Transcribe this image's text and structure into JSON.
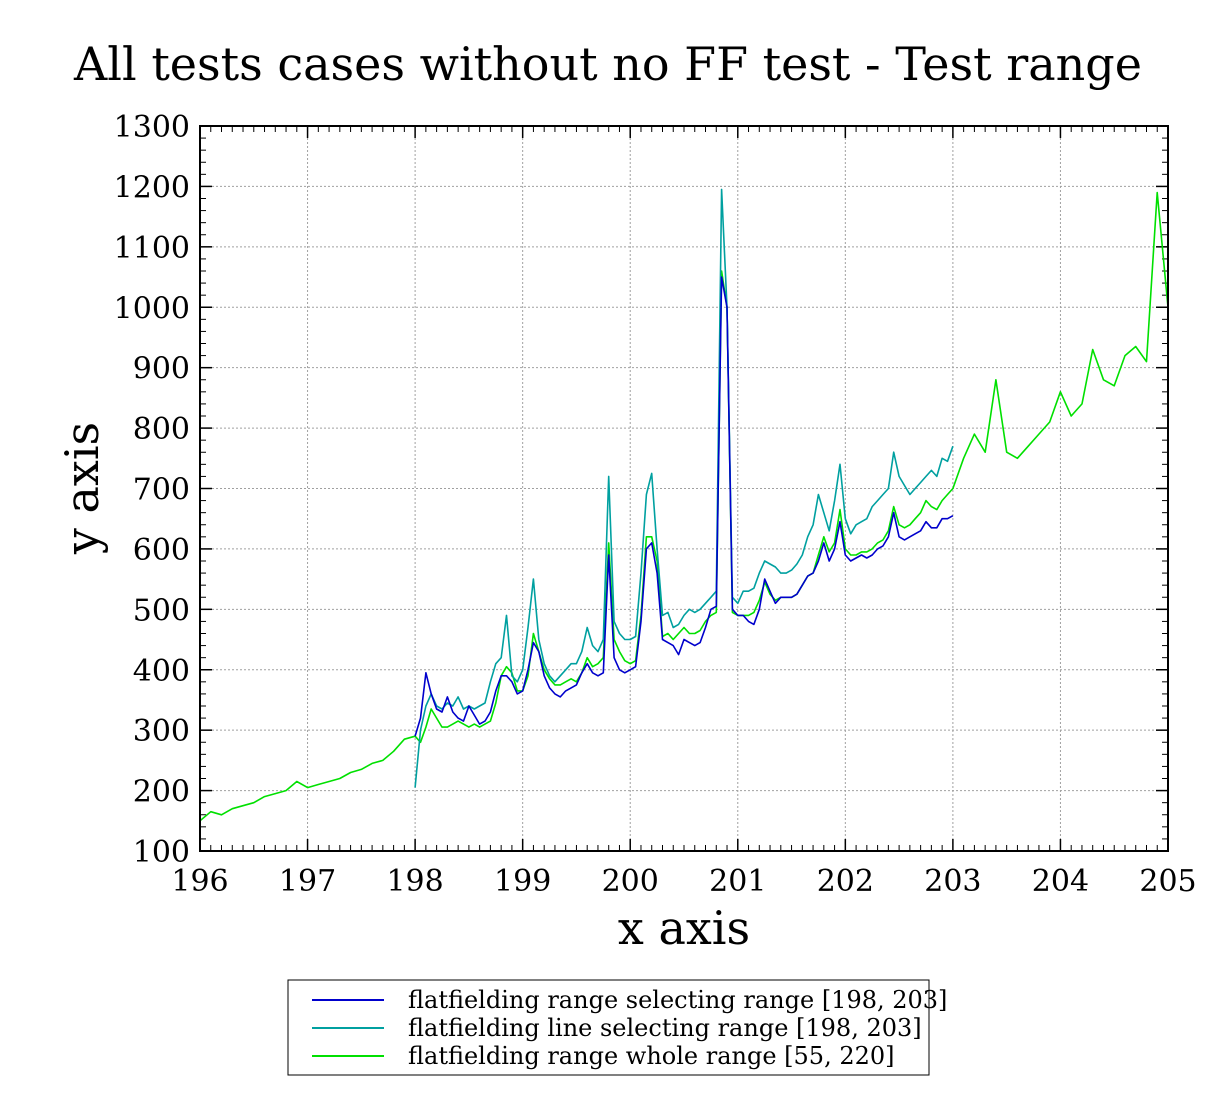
{
  "chart_data": {
    "type": "line",
    "title": "All tests cases without no FF test - Test range",
    "xlabel": "x axis",
    "ylabel": "y axis",
    "xlim": [
      196,
      205
    ],
    "ylim": [
      100,
      1300
    ],
    "xticks": [
      "196",
      "197",
      "198",
      "199",
      "200",
      "201",
      "202",
      "203",
      "204",
      "205"
    ],
    "yticks": [
      "100",
      "200",
      "300",
      "400",
      "500",
      "600",
      "700",
      "800",
      "900",
      "1000",
      "1100",
      "1200",
      "1300"
    ],
    "grid": true,
    "legend_position": "bottom-center",
    "series": [
      {
        "name": "flatfielding range selecting range [198, 203]",
        "color": "#0000cc",
        "x": [
          198.0,
          198.05,
          198.1,
          198.15,
          198.2,
          198.25,
          198.3,
          198.35,
          198.4,
          198.45,
          198.5,
          198.55,
          198.6,
          198.65,
          198.7,
          198.75,
          198.8,
          198.85,
          198.9,
          198.95,
          199.0,
          199.05,
          199.1,
          199.15,
          199.2,
          199.25,
          199.3,
          199.35,
          199.4,
          199.45,
          199.5,
          199.55,
          199.6,
          199.65,
          199.7,
          199.75,
          199.8,
          199.85,
          199.9,
          199.95,
          200.0,
          200.05,
          200.1,
          200.15,
          200.2,
          200.25,
          200.3,
          200.35,
          200.4,
          200.45,
          200.5,
          200.55,
          200.6,
          200.65,
          200.7,
          200.75,
          200.8,
          200.85,
          200.9,
          200.95,
          201.0,
          201.05,
          201.1,
          201.15,
          201.2,
          201.25,
          201.3,
          201.35,
          201.4,
          201.45,
          201.5,
          201.55,
          201.6,
          201.65,
          201.7,
          201.75,
          201.8,
          201.85,
          201.9,
          201.95,
          202.0,
          202.05,
          202.1,
          202.15,
          202.2,
          202.25,
          202.3,
          202.35,
          202.4,
          202.45,
          202.5,
          202.55,
          202.6,
          202.65,
          202.7,
          202.75,
          202.8,
          202.85,
          202.9,
          202.95,
          203.0
        ],
        "y": [
          290,
          320,
          395,
          360,
          335,
          330,
          355,
          330,
          320,
          315,
          340,
          325,
          310,
          315,
          330,
          365,
          390,
          390,
          380,
          360,
          365,
          400,
          445,
          430,
          390,
          370,
          360,
          355,
          365,
          370,
          375,
          395,
          410,
          395,
          390,
          395,
          590,
          420,
          400,
          395,
          400,
          405,
          480,
          600,
          610,
          560,
          450,
          445,
          440,
          425,
          450,
          445,
          440,
          445,
          470,
          500,
          505,
          1050,
          1000,
          500,
          490,
          490,
          480,
          475,
          500,
          550,
          530,
          510,
          520,
          520,
          520,
          525,
          540,
          555,
          560,
          580,
          610,
          580,
          600,
          645,
          590,
          580,
          585,
          590,
          585,
          590,
          600,
          605,
          620,
          660,
          620,
          615,
          620,
          625,
          630,
          645,
          635,
          635,
          650,
          650,
          655
        ]
      },
      {
        "name": "flatfielding line selecting range [198, 203]",
        "color": "#00a0a0",
        "x": [
          198.0,
          198.05,
          198.1,
          198.15,
          198.2,
          198.25,
          198.3,
          198.35,
          198.4,
          198.45,
          198.5,
          198.55,
          198.6,
          198.65,
          198.7,
          198.75,
          198.8,
          198.85,
          198.9,
          198.95,
          199.0,
          199.05,
          199.1,
          199.15,
          199.2,
          199.25,
          199.3,
          199.35,
          199.4,
          199.45,
          199.5,
          199.55,
          199.6,
          199.65,
          199.7,
          199.75,
          199.8,
          199.85,
          199.9,
          199.95,
          200.0,
          200.05,
          200.1,
          200.15,
          200.2,
          200.25,
          200.3,
          200.35,
          200.4,
          200.45,
          200.5,
          200.55,
          200.6,
          200.65,
          200.7,
          200.75,
          200.8,
          200.85,
          200.9,
          200.95,
          201.0,
          201.05,
          201.1,
          201.15,
          201.2,
          201.25,
          201.3,
          201.35,
          201.4,
          201.45,
          201.5,
          201.55,
          201.6,
          201.65,
          201.7,
          201.75,
          201.8,
          201.85,
          201.9,
          201.95,
          202.0,
          202.05,
          202.1,
          202.15,
          202.2,
          202.25,
          202.3,
          202.35,
          202.4,
          202.45,
          202.5,
          202.55,
          202.6,
          202.65,
          202.7,
          202.75,
          202.8,
          202.85,
          202.9,
          202.95,
          203.0
        ],
        "y": [
          205,
          300,
          340,
          360,
          340,
          335,
          345,
          340,
          355,
          335,
          340,
          335,
          340,
          345,
          380,
          410,
          420,
          490,
          390,
          380,
          400,
          470,
          550,
          450,
          410,
          390,
          380,
          390,
          400,
          410,
          410,
          430,
          470,
          440,
          430,
          450,
          720,
          480,
          460,
          450,
          450,
          455,
          560,
          690,
          725,
          600,
          490,
          495,
          470,
          475,
          490,
          500,
          495,
          500,
          510,
          520,
          530,
          1195,
          1000,
          520,
          510,
          530,
          530,
          535,
          560,
          580,
          575,
          570,
          560,
          560,
          565,
          575,
          590,
          620,
          640,
          690,
          660,
          630,
          680,
          740,
          650,
          625,
          640,
          645,
          650,
          670,
          680,
          690,
          700,
          760,
          720,
          705,
          690,
          700,
          710,
          720,
          730,
          720,
          750,
          745,
          770
        ]
      },
      {
        "name": "flatfielding range whole range [55, 220]",
        "color": "#00e000",
        "x": [
          196.0,
          196.1,
          196.2,
          196.3,
          196.4,
          196.5,
          196.6,
          196.7,
          196.8,
          196.9,
          197.0,
          197.1,
          197.2,
          197.3,
          197.4,
          197.5,
          197.6,
          197.7,
          197.8,
          197.9,
          198.0,
          198.05,
          198.1,
          198.15,
          198.2,
          198.25,
          198.3,
          198.35,
          198.4,
          198.45,
          198.5,
          198.55,
          198.6,
          198.65,
          198.7,
          198.75,
          198.8,
          198.85,
          198.9,
          198.95,
          199.0,
          199.05,
          199.1,
          199.15,
          199.2,
          199.25,
          199.3,
          199.35,
          199.4,
          199.45,
          199.5,
          199.55,
          199.6,
          199.65,
          199.7,
          199.75,
          199.8,
          199.85,
          199.9,
          199.95,
          200.0,
          200.05,
          200.1,
          200.15,
          200.2,
          200.25,
          200.3,
          200.35,
          200.4,
          200.45,
          200.5,
          200.55,
          200.6,
          200.65,
          200.7,
          200.75,
          200.8,
          200.85,
          200.9,
          200.95,
          201.0,
          201.05,
          201.1,
          201.15,
          201.2,
          201.25,
          201.3,
          201.35,
          201.4,
          201.45,
          201.5,
          201.55,
          201.6,
          201.65,
          201.7,
          201.75,
          201.8,
          201.85,
          201.9,
          201.95,
          202.0,
          202.05,
          202.1,
          202.15,
          202.2,
          202.25,
          202.3,
          202.35,
          202.4,
          202.45,
          202.5,
          202.55,
          202.6,
          202.65,
          202.7,
          202.75,
          202.8,
          202.85,
          202.9,
          202.95,
          203.0,
          203.1,
          203.2,
          203.3,
          203.4,
          203.5,
          203.6,
          203.7,
          203.8,
          203.9,
          204.0,
          204.1,
          204.2,
          204.3,
          204.4,
          204.5,
          204.6,
          204.7,
          204.8,
          204.9,
          205.0
        ],
        "y": [
          150,
          165,
          160,
          170,
          175,
          180,
          190,
          195,
          200,
          215,
          205,
          210,
          215,
          220,
          230,
          235,
          245,
          250,
          265,
          285,
          290,
          280,
          305,
          335,
          320,
          305,
          305,
          310,
          315,
          310,
          305,
          310,
          305,
          310,
          315,
          345,
          390,
          405,
          395,
          365,
          365,
          390,
          460,
          430,
          400,
          385,
          375,
          375,
          380,
          385,
          380,
          395,
          420,
          405,
          410,
          420,
          610,
          450,
          430,
          415,
          410,
          415,
          490,
          620,
          620,
          580,
          455,
          460,
          450,
          460,
          470,
          460,
          460,
          465,
          480,
          490,
          495,
          1060,
          1000,
          495,
          490,
          490,
          490,
          495,
          515,
          545,
          525,
          515,
          520,
          520,
          520,
          525,
          540,
          555,
          560,
          590,
          620,
          595,
          610,
          665,
          600,
          590,
          590,
          595,
          595,
          600,
          610,
          615,
          630,
          670,
          640,
          635,
          640,
          650,
          660,
          680,
          670,
          665,
          680,
          690,
          700,
          750,
          790,
          760,
          880,
          760,
          750,
          770,
          790,
          810,
          860,
          820,
          840,
          930,
          880,
          870,
          920,
          935,
          910,
          1190,
          1000
        ]
      }
    ]
  }
}
